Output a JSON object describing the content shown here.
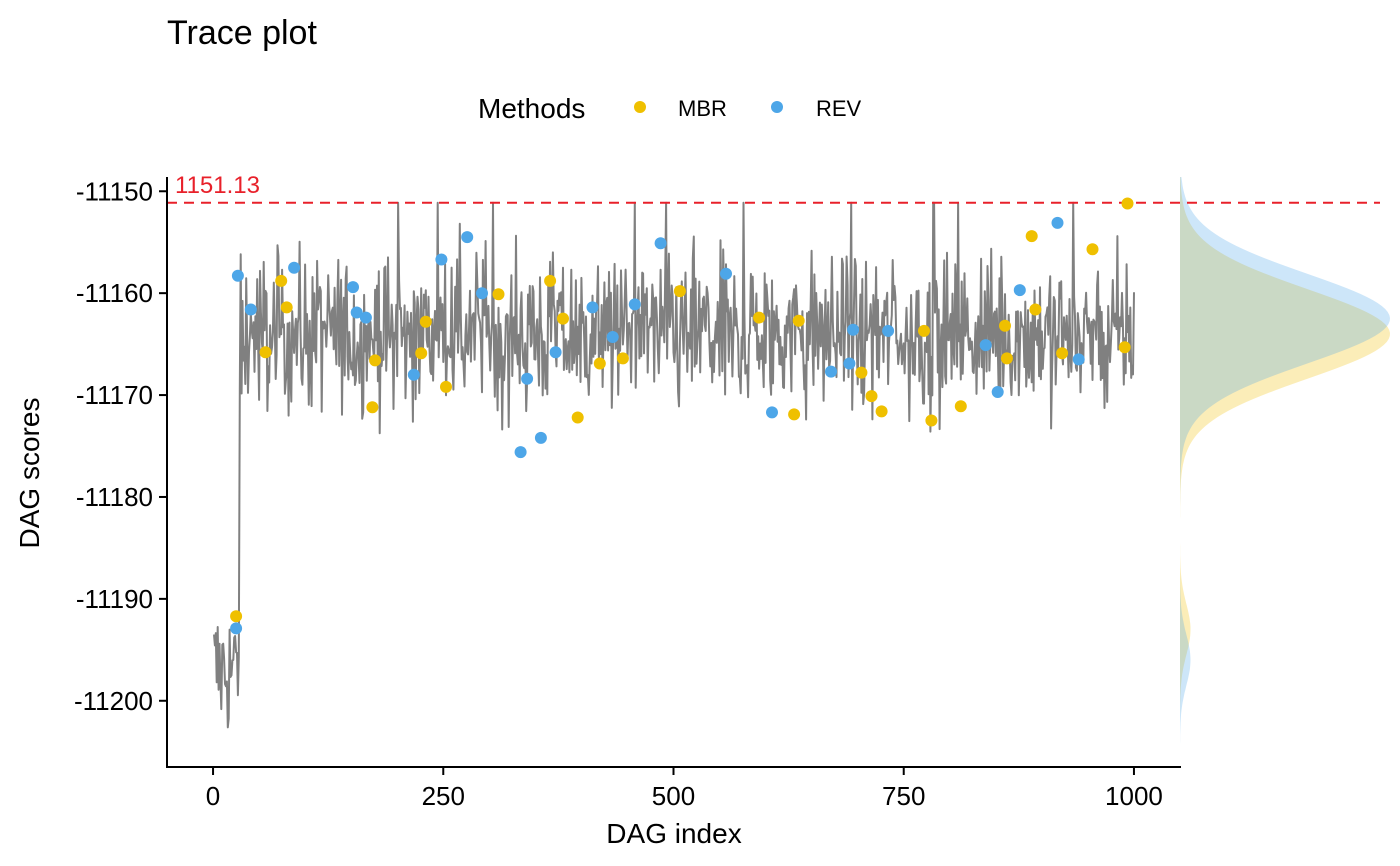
{
  "chart_data": {
    "type": "line",
    "title": "Trace plot",
    "xlabel": "DAG index",
    "ylabel": "DAG scores",
    "xlim": [
      -50,
      1050
    ],
    "ylim": [
      -11206.5,
      -11148.6
    ],
    "x_ticks": [
      0,
      250,
      500,
      750,
      1000
    ],
    "x_tick_labels": [
      "0",
      "250",
      "500",
      "750",
      "1000"
    ],
    "y_ticks": [
      -11150,
      -11160,
      -11170,
      -11180,
      -11190,
      -11200
    ],
    "y_tick_labels": [
      "-11150",
      "-11160",
      "-11170",
      "-11180",
      "-11190",
      "-11200"
    ],
    "grid": false,
    "legend": {
      "title": "Methods",
      "position": "top",
      "entries": [
        {
          "name": "MBR",
          "color": "#EFC000"
        },
        {
          "name": "REV",
          "color": "#4DA6E8"
        }
      ]
    },
    "reference_line": {
      "y": -11151.13,
      "label": "1151.13",
      "color": "#E8202A",
      "style": "dashed"
    },
    "trace": {
      "color": "#808080",
      "n_points": 1000,
      "burn_in_end": 28,
      "burn_in_center": -11197,
      "burn_in_spread": 3.5,
      "center": -11164,
      "spread": 3.8,
      "max": -11151.13,
      "min": -11204
    },
    "series": [
      {
        "name": "MBR",
        "color": "#EFC000",
        "points": [
          [
            25,
            -11191.7
          ],
          [
            57,
            -11165.8
          ],
          [
            74,
            -11158.8
          ],
          [
            80,
            -11161.4
          ],
          [
            173,
            -11171.2
          ],
          [
            176,
            -11166.6
          ],
          [
            226,
            -11165.9
          ],
          [
            231,
            -11162.8
          ],
          [
            253,
            -11169.2
          ],
          [
            310,
            -11160.1
          ],
          [
            366,
            -11158.8
          ],
          [
            380,
            -11162.5
          ],
          [
            396,
            -11172.2
          ],
          [
            420,
            -11166.9
          ],
          [
            445,
            -11166.4
          ],
          [
            507,
            -11159.8
          ],
          [
            593,
            -11162.4
          ],
          [
            631,
            -11171.9
          ],
          [
            636,
            -11162.7
          ],
          [
            704,
            -11167.8
          ],
          [
            715,
            -11170.1
          ],
          [
            726,
            -11171.6
          ],
          [
            772,
            -11163.7
          ],
          [
            780,
            -11172.5
          ],
          [
            812,
            -11171.1
          ],
          [
            860,
            -11163.2
          ],
          [
            862,
            -11166.4
          ],
          [
            889,
            -11154.4
          ],
          [
            893,
            -11161.6
          ],
          [
            922,
            -11165.9
          ],
          [
            955,
            -11155.7
          ],
          [
            990,
            -11165.3
          ],
          [
            993,
            -11151.2
          ]
        ]
      },
      {
        "name": "REV",
        "color": "#4DA6E8",
        "points": [
          [
            25,
            -11192.9
          ],
          [
            27,
            -11158.3
          ],
          [
            41,
            -11161.6
          ],
          [
            88,
            -11157.5
          ],
          [
            152,
            -11159.4
          ],
          [
            156,
            -11161.9
          ],
          [
            166,
            -11162.4
          ],
          [
            218,
            -11168.0
          ],
          [
            248,
            -11156.7
          ],
          [
            276,
            -11154.5
          ],
          [
            292,
            -11160.0
          ],
          [
            334,
            -11175.6
          ],
          [
            341,
            -11168.4
          ],
          [
            356,
            -11174.2
          ],
          [
            372,
            -11165.8
          ],
          [
            412,
            -11161.4
          ],
          [
            434,
            -11164.3
          ],
          [
            458,
            -11161.1
          ],
          [
            486,
            -11155.1
          ],
          [
            557,
            -11158.1
          ],
          [
            607,
            -11171.7
          ],
          [
            671,
            -11167.7
          ],
          [
            691,
            -11166.9
          ],
          [
            695,
            -11163.6
          ],
          [
            733,
            -11163.7
          ],
          [
            839,
            -11165.1
          ],
          [
            852,
            -11169.7
          ],
          [
            876,
            -11159.7
          ],
          [
            917,
            -11153.1
          ],
          [
            940,
            -11166.5
          ]
        ]
      }
    ],
    "density": {
      "MBR": {
        "color": "#EFC000",
        "opacity": 0.28,
        "peak_y": -11164,
        "sd": 4.4,
        "minor_peak_y": -11193,
        "minor_sd": 2.5,
        "minor_weight": 0.05
      },
      "REV": {
        "color": "#4DA6E8",
        "opacity": 0.28,
        "peak_y": -11162.5,
        "sd": 4.4,
        "minor_peak_y": -11196,
        "minor_sd": 2.5,
        "minor_weight": 0.05
      }
    }
  }
}
